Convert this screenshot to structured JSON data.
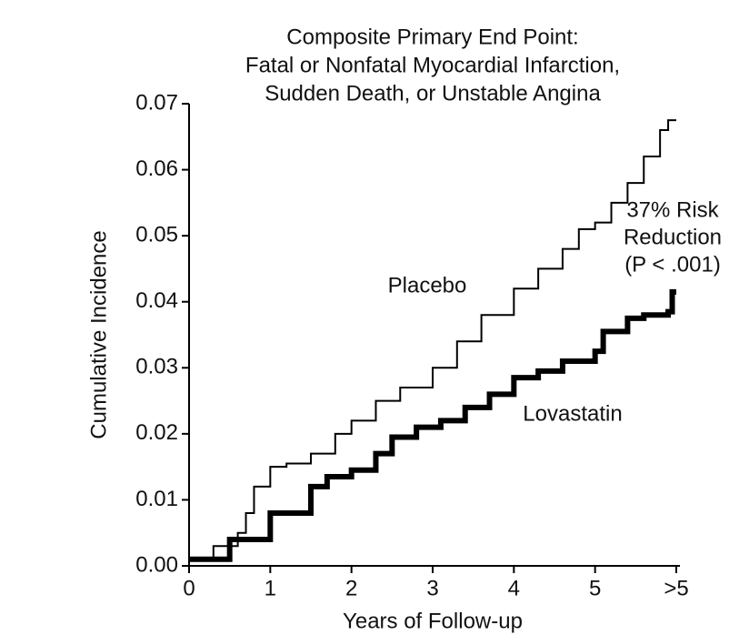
{
  "chart_data": {
    "type": "step",
    "title": [
      "Composite Primary End Point:",
      "Fatal or Nonfatal Myocardial Infarction,",
      "Sudden Death, or Unstable Angina"
    ],
    "x_label": "Years of Follow-up",
    "y_label": "Cumulative Incidence",
    "annotations": [
      {
        "series": 0,
        "lines": [
          "Placebo"
        ]
      },
      {
        "series": 1,
        "lines": [
          "Lovastatin"
        ]
      },
      {
        "lines": [
          "37% Risk",
          "Reduction",
          "(P < .001)"
        ]
      }
    ],
    "xlim": [
      0,
      6
    ],
    "xticks": [
      0,
      1,
      2,
      3,
      4,
      5,
      {
        "value": 6,
        "label": ">5"
      }
    ],
    "ylim": [
      0,
      0.07
    ],
    "yticks": [
      {
        "value": 0,
        "label": "0.00"
      },
      0.01,
      0.02,
      0.03,
      0.04,
      0.05,
      0.06,
      0.07
    ],
    "series": [
      {
        "name": "Placebo",
        "color": "#000000",
        "x": [
          0,
          0.3,
          0.6,
          0.7,
          0.8,
          1.0,
          1.2,
          1.5,
          1.8,
          2.0,
          2.3,
          2.6,
          3.0,
          3.3,
          3.6,
          4.0,
          4.3,
          4.6,
          4.8,
          5.0,
          5.2,
          5.4,
          5.6,
          5.8,
          5.9,
          6.0
        ],
        "values": [
          0.001,
          0.003,
          0.005,
          0.008,
          0.012,
          0.015,
          0.0155,
          0.017,
          0.02,
          0.022,
          0.025,
          0.027,
          0.03,
          0.034,
          0.038,
          0.042,
          0.045,
          0.048,
          0.051,
          0.052,
          0.055,
          0.058,
          0.062,
          0.066,
          0.0675,
          0.0675
        ]
      },
      {
        "name": "Lovastatin",
        "color": "#000000",
        "x": [
          0,
          0.5,
          1.0,
          1.5,
          1.7,
          2.0,
          2.3,
          2.5,
          2.8,
          3.1,
          3.4,
          3.7,
          4.0,
          4.3,
          4.6,
          5.0,
          5.1,
          5.4,
          5.6,
          5.9,
          5.95,
          6.0
        ],
        "values": [
          0.001,
          0.004,
          0.008,
          0.012,
          0.0135,
          0.0145,
          0.017,
          0.0195,
          0.021,
          0.022,
          0.024,
          0.026,
          0.0285,
          0.0295,
          0.031,
          0.0325,
          0.0355,
          0.0375,
          0.038,
          0.0385,
          0.0415,
          0.0415
        ]
      }
    ]
  }
}
